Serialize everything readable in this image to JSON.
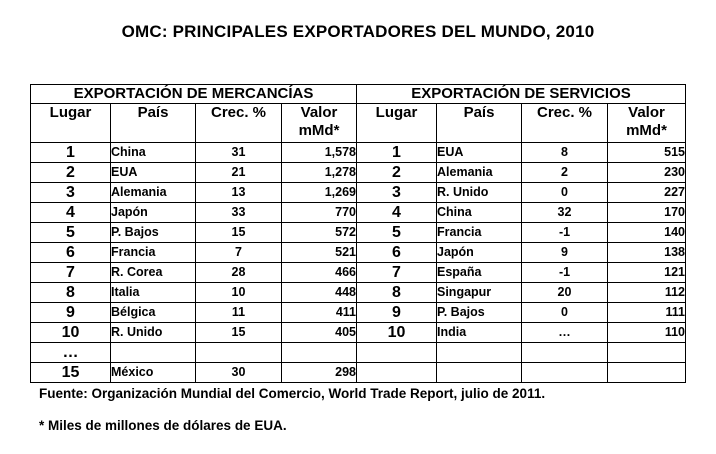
{
  "title": "OMC: PRINCIPALES EXPORTADORES DEL MUNDO, 2010",
  "merchandise": {
    "heading": "EXPORTACIÓN DE MERCANCÍAS",
    "columns": [
      "Lugar",
      "País",
      "Crec. %",
      "Valor mMd*"
    ],
    "rows": [
      {
        "rank": "1",
        "country": "China",
        "growth": "31",
        "value": "1,578"
      },
      {
        "rank": "2",
        "country": "EUA",
        "growth": "21",
        "value": "1,278"
      },
      {
        "rank": "3",
        "country": "Alemania",
        "growth": "13",
        "value": "1,269"
      },
      {
        "rank": "4",
        "country": "Japón",
        "growth": "33",
        "value": "770"
      },
      {
        "rank": "5",
        "country": "P. Bajos",
        "growth": "15",
        "value": "572"
      },
      {
        "rank": "6",
        "country": "Francia",
        "growth": "7",
        "value": "521"
      },
      {
        "rank": "7",
        "country": "R. Corea",
        "growth": "28",
        "value": "466"
      },
      {
        "rank": "8",
        "country": "Italia",
        "growth": "10",
        "value": "448"
      },
      {
        "rank": "9",
        "country": "Bélgica",
        "growth": "11",
        "value": "411"
      },
      {
        "rank": "10",
        "country": "R. Unido",
        "growth": "15",
        "value": "405"
      },
      {
        "rank": "…",
        "country": "",
        "growth": "",
        "value": ""
      },
      {
        "rank": "15",
        "country": "México",
        "growth": "30",
        "value": "298"
      }
    ]
  },
  "services": {
    "heading": "EXPORTACIÓN DE SERVICIOS",
    "columns": [
      "Lugar",
      "País",
      "Crec. %",
      "Valor mMd*"
    ],
    "rows": [
      {
        "rank": "1",
        "country": "EUA",
        "growth": "8",
        "value": "515"
      },
      {
        "rank": "2",
        "country": "Alemania",
        "growth": "2",
        "value": "230"
      },
      {
        "rank": "3",
        "country": "R. Unido",
        "growth": "0",
        "value": "227"
      },
      {
        "rank": "4",
        "country": "China",
        "growth": "32",
        "value": "170"
      },
      {
        "rank": "5",
        "country": "Francia",
        "growth": "-1",
        "value": "140"
      },
      {
        "rank": "6",
        "country": "Japón",
        "growth": "9",
        "value": "138"
      },
      {
        "rank": "7",
        "country": "España",
        "growth": "-1",
        "value": "121"
      },
      {
        "rank": "8",
        "country": "Singapur",
        "growth": "20",
        "value": "112"
      },
      {
        "rank": "9",
        "country": "P. Bajos",
        "growth": "0",
        "value": "111"
      },
      {
        "rank": "10",
        "country": "India",
        "growth": "…",
        "value": "110"
      },
      {
        "rank": "",
        "country": "",
        "growth": "",
        "value": ""
      },
      {
        "rank": "",
        "country": "",
        "growth": "",
        "value": ""
      }
    ]
  },
  "source": "Fuente: Organización Mundial del Comercio, World Trade Report, julio de 2011.",
  "footnote": "* Miles de millones de dólares de EUA."
}
